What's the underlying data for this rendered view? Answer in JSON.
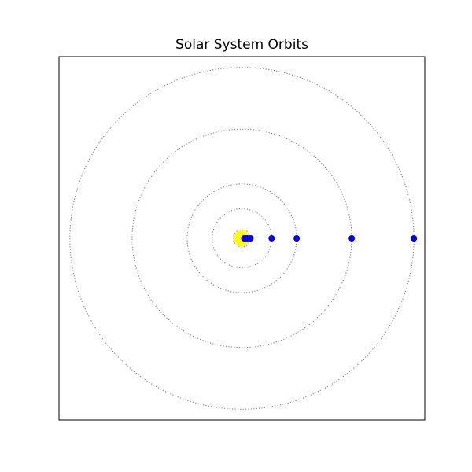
{
  "chart_data": {
    "type": "scatter",
    "title": "Solar System Orbits",
    "xlabel": "",
    "ylabel": "",
    "axes_visible": false,
    "grid": false,
    "legend": false,
    "sun": {
      "x": 0,
      "y": 0,
      "color": "#ffff00"
    },
    "orbits": {
      "style": "dotted",
      "color": "#808080",
      "radii": [
        0.39,
        0.72,
        1.0,
        1.52,
        5.2,
        9.58,
        19.22,
        30.1
      ]
    },
    "planets": {
      "color": "#0000ff",
      "x": [
        0.39,
        0.72,
        1.0,
        1.52,
        5.2,
        9.58,
        19.22,
        30.1
      ],
      "y": [
        0,
        0,
        0,
        0,
        0,
        0,
        0,
        0
      ]
    },
    "xlim": [
      -32,
      32
    ],
    "ylim": [
      -32,
      32
    ]
  }
}
